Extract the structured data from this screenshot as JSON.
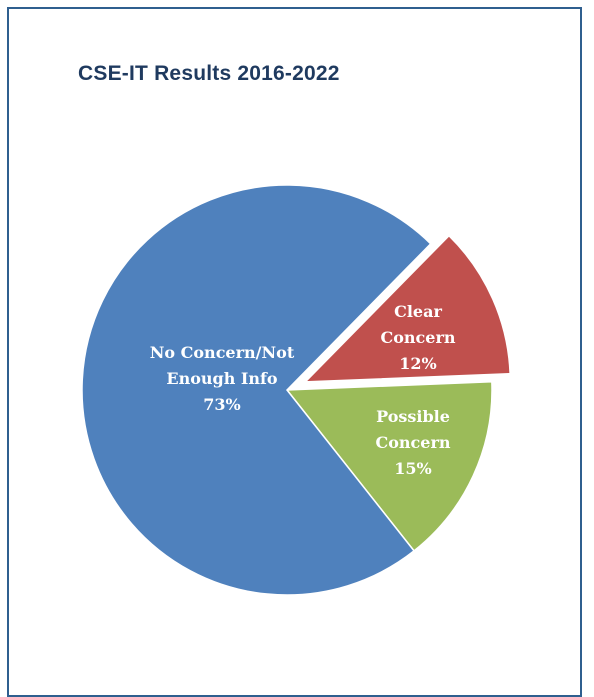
{
  "chart_data": {
    "type": "pie",
    "title": "CSE-IT Results 2016-2022",
    "slices": [
      {
        "label_lines": [
          "No Concern/Not",
          "Enough Info"
        ],
        "value_label": "73%",
        "value": 73,
        "color": "#4f81bd"
      },
      {
        "label_lines": [
          "Clear",
          "Concern"
        ],
        "value_label": "12%",
        "value": 12,
        "color": "#c0504d",
        "exploded": true
      },
      {
        "label_lines": [
          "Possible",
          "Concern"
        ],
        "value_label": "15%",
        "value": 15,
        "color": "#9bbb59"
      }
    ]
  }
}
